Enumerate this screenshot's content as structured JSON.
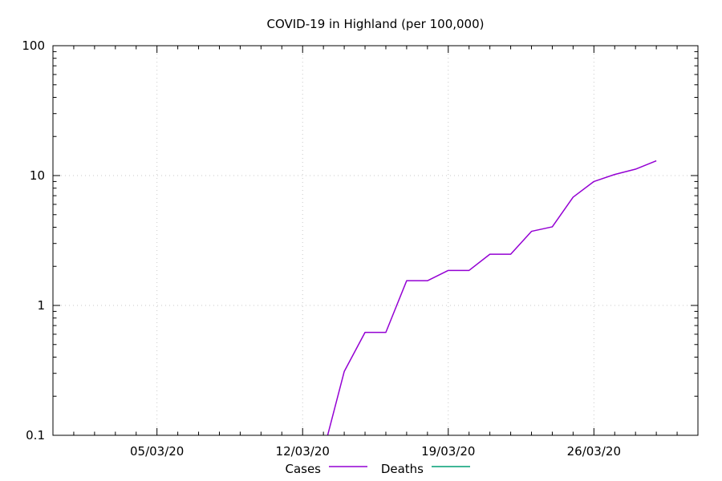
{
  "chart_data": {
    "type": "line",
    "title": "COVID-19 in Highland (per 100,000)",
    "xlabel": "",
    "ylabel": "",
    "y_scale": "log",
    "ylim": [
      0.1,
      100
    ],
    "xlim": [
      "2020-02-29",
      "2020-03-31"
    ],
    "y_ticks": [
      {
        "value": 0.1,
        "label": "0.1"
      },
      {
        "value": 1,
        "label": "1"
      },
      {
        "value": 10,
        "label": "10"
      },
      {
        "value": 100,
        "label": "100"
      }
    ],
    "x_ticks": [
      {
        "date": "2020-03-05",
        "label": "05/03/20"
      },
      {
        "date": "2020-03-12",
        "label": "12/03/20"
      },
      {
        "date": "2020-03-19",
        "label": "19/03/20"
      },
      {
        "date": "2020-03-26",
        "label": "26/03/20"
      }
    ],
    "grid": true,
    "legend_position": "bottom",
    "series": [
      {
        "name": "Cases",
        "color": "#9400d3",
        "points": [
          {
            "x": "2020-03-13",
            "y": 0.075
          },
          {
            "x": "2020-03-14",
            "y": 0.31
          },
          {
            "x": "2020-03-15",
            "y": 0.62
          },
          {
            "x": "2020-03-16",
            "y": 0.62
          },
          {
            "x": "2020-03-17",
            "y": 1.55
          },
          {
            "x": "2020-03-18",
            "y": 1.55
          },
          {
            "x": "2020-03-19",
            "y": 1.86
          },
          {
            "x": "2020-03-20",
            "y": 1.86
          },
          {
            "x": "2020-03-21",
            "y": 2.48
          },
          {
            "x": "2020-03-22",
            "y": 2.48
          },
          {
            "x": "2020-03-23",
            "y": 3.72
          },
          {
            "x": "2020-03-24",
            "y": 4.03
          },
          {
            "x": "2020-03-25",
            "y": 6.82
          },
          {
            "x": "2020-03-26",
            "y": 9.0
          },
          {
            "x": "2020-03-27",
            "y": 10.2
          },
          {
            "x": "2020-03-28",
            "y": 11.2
          },
          {
            "x": "2020-03-29",
            "y": 13.0
          }
        ]
      },
      {
        "name": "Deaths",
        "color": "#009e73",
        "points": []
      }
    ]
  }
}
